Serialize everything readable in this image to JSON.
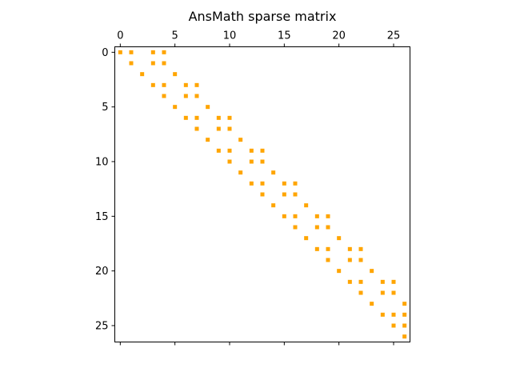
{
  "chart_data": {
    "type": "scatter",
    "title": "AnsMath sparse matrix",
    "xlabel": "",
    "ylabel": "",
    "rows": 27,
    "cols": 27,
    "xlim": [
      -0.5,
      26.5
    ],
    "ylim": [
      26.5,
      -0.5
    ],
    "x_ticks": [
      0,
      5,
      10,
      15,
      20,
      25
    ],
    "y_ticks": [
      0,
      5,
      10,
      15,
      20,
      25
    ],
    "x_axis_position": "top",
    "y_axis_inverted": true,
    "grid": false,
    "legend": "none",
    "marker_color": "#ffa500",
    "marker": "square",
    "nonzeros": [
      [
        0,
        0
      ],
      [
        0,
        1
      ],
      [
        0,
        3
      ],
      [
        0,
        4
      ],
      [
        1,
        1
      ],
      [
        1,
        3
      ],
      [
        1,
        4
      ],
      [
        2,
        2
      ],
      [
        2,
        5
      ],
      [
        3,
        3
      ],
      [
        3,
        4
      ],
      [
        3,
        6
      ],
      [
        3,
        7
      ],
      [
        4,
        4
      ],
      [
        4,
        6
      ],
      [
        4,
        7
      ],
      [
        5,
        5
      ],
      [
        5,
        8
      ],
      [
        6,
        6
      ],
      [
        6,
        7
      ],
      [
        6,
        9
      ],
      [
        6,
        10
      ],
      [
        7,
        7
      ],
      [
        7,
        9
      ],
      [
        7,
        10
      ],
      [
        8,
        8
      ],
      [
        8,
        11
      ],
      [
        9,
        9
      ],
      [
        9,
        10
      ],
      [
        9,
        12
      ],
      [
        9,
        13
      ],
      [
        10,
        10
      ],
      [
        10,
        12
      ],
      [
        10,
        13
      ],
      [
        11,
        11
      ],
      [
        11,
        14
      ],
      [
        12,
        12
      ],
      [
        12,
        13
      ],
      [
        12,
        15
      ],
      [
        12,
        16
      ],
      [
        13,
        13
      ],
      [
        13,
        15
      ],
      [
        13,
        16
      ],
      [
        14,
        14
      ],
      [
        14,
        17
      ],
      [
        15,
        15
      ],
      [
        15,
        16
      ],
      [
        15,
        18
      ],
      [
        15,
        19
      ],
      [
        16,
        16
      ],
      [
        16,
        18
      ],
      [
        16,
        19
      ],
      [
        17,
        17
      ],
      [
        17,
        20
      ],
      [
        18,
        18
      ],
      [
        18,
        19
      ],
      [
        18,
        21
      ],
      [
        18,
        22
      ],
      [
        19,
        19
      ],
      [
        19,
        21
      ],
      [
        19,
        22
      ],
      [
        20,
        20
      ],
      [
        20,
        23
      ],
      [
        21,
        21
      ],
      [
        21,
        22
      ],
      [
        21,
        24
      ],
      [
        21,
        25
      ],
      [
        22,
        22
      ],
      [
        22,
        24
      ],
      [
        22,
        25
      ],
      [
        23,
        23
      ],
      [
        23,
        26
      ],
      [
        24,
        24
      ],
      [
        24,
        25
      ],
      [
        24,
        26
      ],
      [
        25,
        25
      ],
      [
        25,
        26
      ],
      [
        26,
        26
      ]
    ]
  }
}
